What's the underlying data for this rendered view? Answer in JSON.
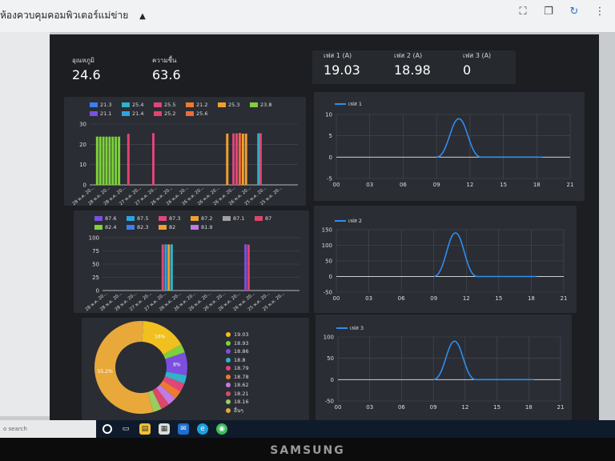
{
  "app": {
    "title": "ห้องควบคุมคอมพิวเตอร์แม่ข่าย"
  },
  "toolbar_icons": [
    "expand-icon",
    "copy-icon",
    "refresh-icon",
    "more-icon"
  ],
  "stats": [
    {
      "label": "อุณหภูมิ",
      "value": "24.6"
    },
    {
      "label": "ความชื้น",
      "value": "63.6"
    },
    {
      "label": "เฟส 1 (A)",
      "value": "19.03"
    },
    {
      "label": "เฟส 2 (A)",
      "value": "18.98"
    },
    {
      "label": "เฟส 3 (A)",
      "value": "0"
    }
  ],
  "chart_data": [
    {
      "type": "bar",
      "title": "",
      "ylim": [
        0,
        30
      ],
      "yticks": [
        "30",
        "20",
        "10",
        "0"
      ],
      "legend": [
        {
          "label": "21.3",
          "color": "#3e7df2"
        },
        {
          "label": "25.4",
          "color": "#30b3c8"
        },
        {
          "label": "25.5",
          "color": "#e0457b"
        },
        {
          "label": "21.2",
          "color": "#ee7a2d"
        },
        {
          "label": "25.3",
          "color": "#f0a030"
        },
        {
          "label": "23.8",
          "color": "#7ed13b"
        },
        {
          "label": "21.1",
          "color": "#7b4fe0"
        },
        {
          "label": "21.4",
          "color": "#29a5e3"
        },
        {
          "label": "25.2",
          "color": "#e0456a"
        },
        {
          "label": "25.6",
          "color": "#f06a3a"
        }
      ],
      "categories": [
        "28 พ.ค. 20...",
        "28 พ.ค. 20...",
        "28 พ.ค. 20...",
        "27 พ.ค. 20...",
        "27 พ.ค. 20...",
        "26 พ.ค. 20...",
        "26 พ.ค. 20...",
        "26 พ.ค. 20...",
        "26 พ.ค. 20...",
        "26 พ.ค. 20...",
        "26 พ.ค. 20...",
        "25 พ.ค. 20...",
        "25 พ.ค. 20..."
      ],
      "bars": [
        {
          "pos": 0.03,
          "value": 23.8,
          "color": "#7ed13b"
        },
        {
          "pos": 0.045,
          "value": 23.8,
          "color": "#7ed13b"
        },
        {
          "pos": 0.06,
          "value": 23.8,
          "color": "#7ed13b"
        },
        {
          "pos": 0.075,
          "value": 23.8,
          "color": "#7ed13b"
        },
        {
          "pos": 0.09,
          "value": 23.8,
          "color": "#7ed13b"
        },
        {
          "pos": 0.105,
          "value": 23.8,
          "color": "#7ed13b"
        },
        {
          "pos": 0.12,
          "value": 23.8,
          "color": "#7ed13b"
        },
        {
          "pos": 0.135,
          "value": 23.8,
          "color": "#7ed13b"
        },
        {
          "pos": 0.18,
          "value": 25.2,
          "color": "#e0456a"
        },
        {
          "pos": 0.3,
          "value": 25.5,
          "color": "#e0457b"
        },
        {
          "pos": 0.655,
          "value": 25.3,
          "color": "#f0a030"
        },
        {
          "pos": 0.685,
          "value": 25.4,
          "color": "#e0457b"
        },
        {
          "pos": 0.7,
          "value": 25.4,
          "color": "#e0457b"
        },
        {
          "pos": 0.715,
          "value": 25.6,
          "color": "#f06a3a"
        },
        {
          "pos": 0.73,
          "value": 25.3,
          "color": "#f0a030"
        },
        {
          "pos": 0.745,
          "value": 25.3,
          "color": "#f0a030"
        },
        {
          "pos": 0.805,
          "value": 25.4,
          "color": "#30b3c8"
        },
        {
          "pos": 0.815,
          "value": 25.5,
          "color": "#e0457b"
        }
      ]
    },
    {
      "type": "line",
      "ylim": [
        -5,
        10
      ],
      "yticks": [
        "10",
        "5",
        "0",
        "-5"
      ],
      "xticks": [
        "00",
        "03",
        "06",
        "09",
        "12",
        "15",
        "18",
        "21"
      ],
      "series": [
        {
          "name": "เฟส 1",
          "color": "#2f8ef0"
        }
      ],
      "peak": {
        "x": 11,
        "y": 9
      },
      "baseline": 0
    },
    {
      "type": "bar",
      "ylim": [
        0,
        100
      ],
      "yticks": [
        "100",
        "75",
        "50",
        "25",
        "0"
      ],
      "legend": [
        {
          "label": "87.6",
          "color": "#7b4fe0"
        },
        {
          "label": "87.5",
          "color": "#29a5e3"
        },
        {
          "label": "87.3",
          "color": "#e0457b"
        },
        {
          "label": "87.2",
          "color": "#f0a030"
        },
        {
          "label": "87.1",
          "color": "#a0a0a0"
        },
        {
          "label": "87",
          "color": "#e0456a"
        },
        {
          "label": "82.4",
          "color": "#7ed13b"
        },
        {
          "label": "82.3",
          "color": "#3e7df2"
        },
        {
          "label": "82",
          "color": "#f0a030"
        },
        {
          "label": "81.9",
          "color": "#c27be0"
        }
      ],
      "categories": [
        "28 พ.ค. 20...",
        "28 พ.ค. 20...",
        "28 พ.ค. 20...",
        "27 พ.ค. 20...",
        "27 พ.ค. 20...",
        "26 พ.ค. 20...",
        "26 พ.ค. 20...",
        "26 พ.ค. 20...",
        "26 พ.ค. 20...",
        "26 พ.ค. 20...",
        "26 พ.ค. 20...",
        "25 พ.ค. 20...",
        "25 พ.ค. 20..."
      ],
      "bars": [
        {
          "pos": 0.3,
          "value": 87.3,
          "color": "#e0457b"
        },
        {
          "pos": 0.315,
          "value": 87.5,
          "color": "#29a5e3"
        },
        {
          "pos": 0.33,
          "value": 87.2,
          "color": "#f0a030"
        },
        {
          "pos": 0.345,
          "value": 87.5,
          "color": "#30b3c8"
        },
        {
          "pos": 0.72,
          "value": 87.6,
          "color": "#7b4fe0"
        },
        {
          "pos": 0.735,
          "value": 87.0,
          "color": "#e0456a"
        }
      ]
    },
    {
      "type": "line",
      "ylim": [
        -50,
        150
      ],
      "yticks": [
        "150",
        "100",
        "50",
        "0",
        "-50"
      ],
      "xticks": [
        "00",
        "03",
        "06",
        "09",
        "12",
        "15",
        "18",
        "21"
      ],
      "series": [
        {
          "name": "เฟส 2",
          "color": "#2f8ef0"
        }
      ],
      "peak": {
        "x": 11,
        "y": 140
      },
      "baseline": 0
    },
    {
      "type": "pie",
      "slices": [
        {
          "label": "19.03",
          "value": 16,
          "color": "#f0c020"
        },
        {
          "label": "18.93",
          "value": 3,
          "color": "#7ed13b"
        },
        {
          "label": "18.86",
          "value": 8,
          "color": "#7b4fe0"
        },
        {
          "label": "18.8",
          "value": 3,
          "color": "#30b3c8"
        },
        {
          "label": "18.79",
          "value": 3,
          "color": "#e0457b"
        },
        {
          "label": "18.78",
          "value": 3,
          "color": "#ee7a2d"
        },
        {
          "label": "18.62",
          "value": 3,
          "color": "#c27be0"
        },
        {
          "label": "18.21",
          "value": 3,
          "color": "#e0456a"
        },
        {
          "label": "18.16",
          "value": 3,
          "color": "#9acd60"
        },
        {
          "label": "อื่นๆ",
          "value": 55.2,
          "color": "#e8a93a"
        }
      ],
      "slice_labels": {
        "first": "16%",
        "third": "8%",
        "last": "55.2%"
      }
    },
    {
      "type": "line",
      "ylim": [
        -50,
        100
      ],
      "yticks": [
        "100",
        "50",
        "0",
        "-50"
      ],
      "xticks": [
        "00",
        "03",
        "06",
        "09",
        "12",
        "15",
        "18",
        "21"
      ],
      "series": [
        {
          "name": "เฟส 3",
          "color": "#2f8ef0"
        }
      ],
      "peak": {
        "x": 11,
        "y": 90
      },
      "baseline": 0
    }
  ],
  "taskbar": {
    "search_placeholder": "o search",
    "icons": [
      "cortana-icon",
      "task-view-icon",
      "file-explorer-icon",
      "store-icon",
      "mail-icon",
      "edge-icon",
      "chrome-icon"
    ]
  },
  "monitor": {
    "brand": "SAMSUNG"
  }
}
